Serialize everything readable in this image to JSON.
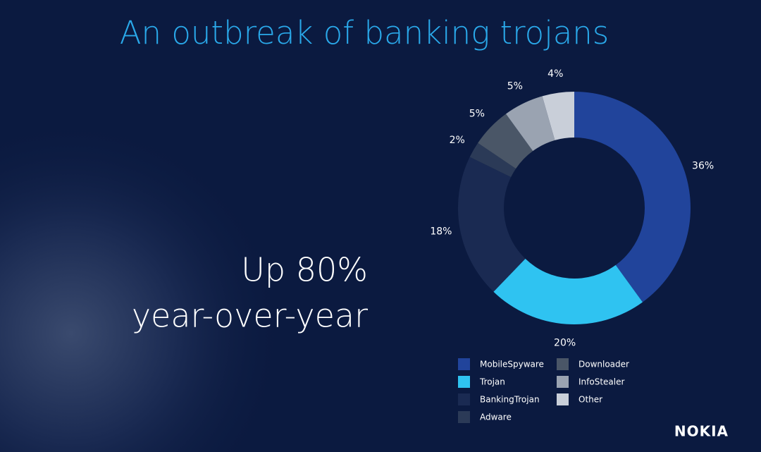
{
  "chart_data": {
    "type": "pie",
    "title": "An outbreak of banking trojans",
    "donut": true,
    "categories": [
      "MobileSpyware",
      "Trojan",
      "BankingTrojan",
      "Adware",
      "Downloader",
      "InfoStealer",
      "Other"
    ],
    "values": [
      36,
      20,
      18,
      2,
      5,
      5,
      4
    ],
    "value_labels": [
      "36%",
      "20%",
      "18%",
      "2%",
      "5%",
      "5%",
      "4%"
    ],
    "colors": [
      "#21449b",
      "#2fc3f1",
      "#1a2a52",
      "#2b3a57",
      "#4a5667",
      "#9aa3b1",
      "#c9cfd9"
    ]
  },
  "headline": [
    "Up 80%",
    "year-over-year"
  ],
  "logo": "NOKIA"
}
